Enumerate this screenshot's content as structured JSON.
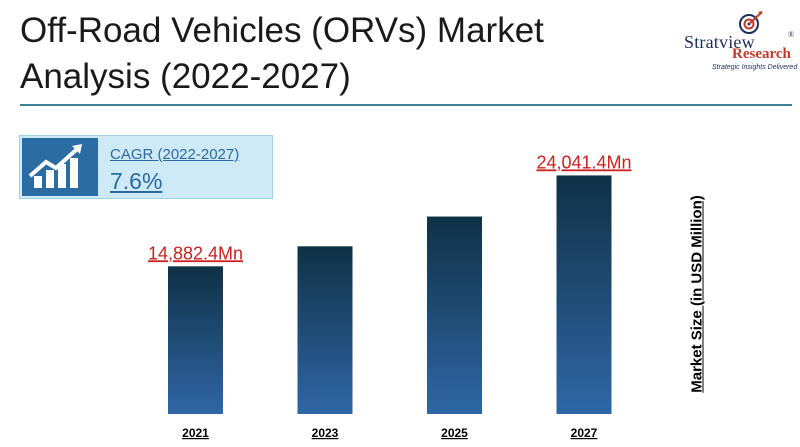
{
  "header": {
    "title": "Off-Road Vehicles (ORVs) Market Analysis (2022-2027)"
  },
  "logo": {
    "brand": "Stratview",
    "registered": "®",
    "sub": "Research",
    "tagline": "Strategic Insights Delivered"
  },
  "cagr": {
    "label": "CAGR (2022-2027)",
    "value": "7.6%",
    "icon": "growth-chart-icon"
  },
  "colors": {
    "bar_top": "#0f3146",
    "bar_bottom": "#2f67a6",
    "callout": "#cc1f1f",
    "rule": "#3e7f95"
  },
  "chart_data": {
    "type": "bar",
    "categories": [
      "2021",
      "2023",
      "2025",
      "2027"
    ],
    "values": [
      14882.4,
      16900,
      19900,
      24041.4
    ],
    "data_labels": [
      "14,882.4Mn",
      "",
      "",
      "24,041.4Mn"
    ],
    "ylabel": "Market Size (in USD Million)",
    "ylim": [
      0,
      26000
    ],
    "grid": false,
    "legend": "none"
  }
}
